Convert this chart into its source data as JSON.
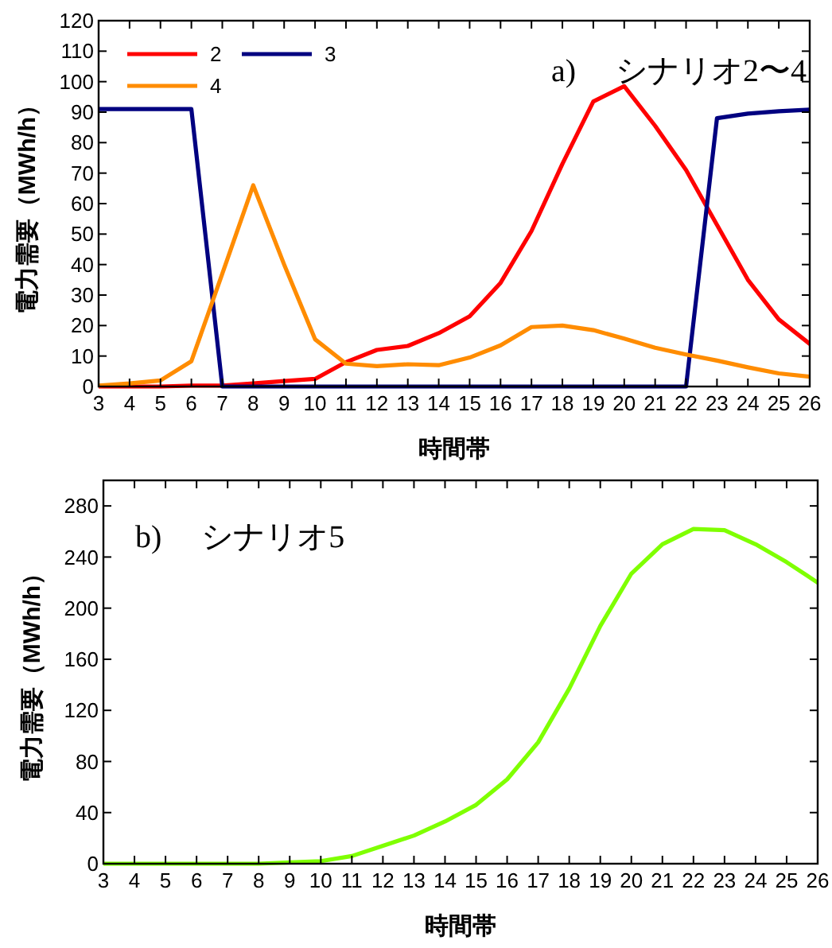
{
  "chart_data": [
    {
      "type": "line",
      "xlabel": "時間帯",
      "ylabel": "電力需要（MWh/h）",
      "annotations": [
        "a)　 シナリオ2〜4"
      ],
      "x": [
        3,
        4,
        5,
        6,
        7,
        8,
        9,
        10,
        11,
        12,
        13,
        14,
        15,
        16,
        17,
        18,
        19,
        20,
        21,
        22,
        23,
        24,
        25,
        26
      ],
      "xlim": [
        3,
        26
      ],
      "xticks": [
        3,
        4,
        5,
        6,
        7,
        8,
        9,
        10,
        11,
        12,
        13,
        14,
        15,
        16,
        17,
        18,
        19,
        20,
        21,
        22,
        23,
        24,
        25,
        26
      ],
      "ylim": [
        0,
        120
      ],
      "yticks": [
        0,
        10,
        20,
        30,
        40,
        50,
        60,
        70,
        80,
        90,
        100,
        110,
        120
      ],
      "legend": "top left",
      "grid": false,
      "series": [
        {
          "name": "2",
          "color": "#ff0000",
          "values": [
            0,
            0,
            0,
            0.3,
            0.3,
            1,
            1.8,
            2.5,
            8,
            12,
            13.3,
            17.5,
            23,
            34,
            51,
            73,
            93.5,
            98.5,
            85.5,
            71,
            53,
            35,
            22,
            14
          ]
        },
        {
          "name": "3",
          "color": "#000080",
          "values": [
            91,
            91,
            91,
            91,
            0,
            0,
            0,
            0,
            0,
            0,
            0,
            0,
            0,
            0,
            0,
            0,
            0,
            0,
            0,
            0,
            88,
            89.5,
            90.3,
            90.8
          ]
        },
        {
          "name": "4",
          "color": "#ff8c00",
          "values": [
            0.3,
            1,
            2,
            8.3,
            37,
            66,
            40,
            15.5,
            7.5,
            6.7,
            7.3,
            7,
            9.5,
            13.5,
            19.5,
            20,
            18.5,
            15.7,
            12.7,
            10.5,
            8.5,
            6.3,
            4.3,
            3.2
          ]
        }
      ]
    },
    {
      "type": "line",
      "xlabel": "時間帯",
      "ylabel": "電力需要（MWh/h）",
      "annotations": [
        "b)　 シナリオ5"
      ],
      "x": [
        3,
        4,
        5,
        6,
        7,
        8,
        9,
        10,
        11,
        12,
        13,
        14,
        15,
        16,
        17,
        18,
        19,
        20,
        21,
        22,
        23,
        24,
        25,
        26
      ],
      "xlim": [
        3,
        26
      ],
      "xticks": [
        3,
        4,
        5,
        6,
        7,
        8,
        9,
        10,
        11,
        12,
        13,
        14,
        15,
        16,
        17,
        18,
        19,
        20,
        21,
        22,
        23,
        24,
        25,
        26
      ],
      "ylim": [
        0,
        300
      ],
      "yticks": [
        0,
        40,
        80,
        120,
        160,
        200,
        240,
        280
      ],
      "legend": false,
      "grid": false,
      "series": [
        {
          "color": "#7fff00",
          "values": [
            0,
            0,
            0,
            0,
            0,
            0,
            1,
            2,
            6,
            14,
            22,
            33,
            46,
            66,
            95,
            137,
            186,
            227,
            250,
            262,
            261,
            250,
            236,
            220
          ]
        }
      ]
    }
  ]
}
